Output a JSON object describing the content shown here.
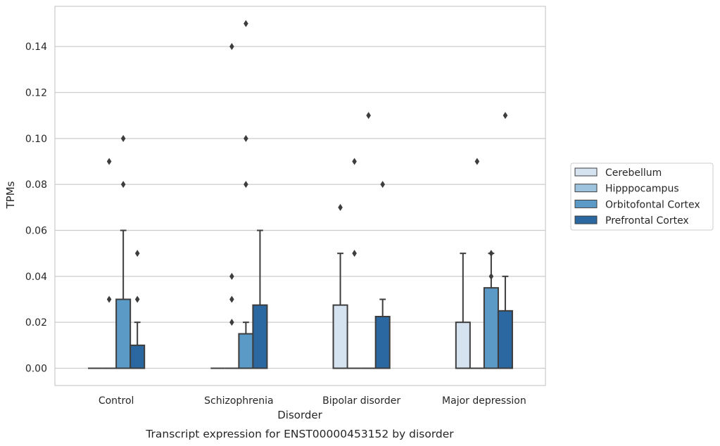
{
  "chart_data": {
    "type": "box",
    "caption": "Transcript expression for ENST00000453152 by disorder",
    "xlabel": "Disorder",
    "ylabel": "TPMs",
    "ylim": [
      -0.0075,
      0.1575
    ],
    "yticks": [
      0.0,
      0.02,
      0.04,
      0.06,
      0.08,
      0.1,
      0.12,
      0.14
    ],
    "ytick_labels": [
      "0.00",
      "0.02",
      "0.04",
      "0.06",
      "0.08",
      "0.10",
      "0.12",
      "0.14"
    ],
    "grid": true,
    "legend_placement": "right",
    "categories": [
      "Control",
      "Schizophrenia",
      "Bipolar disorder",
      "Major depression"
    ],
    "series": [
      {
        "name": "Cerebellum",
        "color": "#d5e3f1",
        "boxes": [
          {
            "q1": 0,
            "median": 0,
            "q3": 0,
            "whisker_low": 0,
            "whisker_high": 0,
            "outliers": []
          },
          {
            "q1": 0,
            "median": 0,
            "q3": 0,
            "whisker_low": 0,
            "whisker_high": 0,
            "outliers": []
          },
          {
            "q1": 0,
            "median": 0,
            "q3": 0.0275,
            "whisker_low": 0,
            "whisker_high": 0.05,
            "outliers": [
              0.07
            ]
          },
          {
            "q1": 0,
            "median": 0,
            "q3": 0.02,
            "whisker_low": 0,
            "whisker_high": 0.05,
            "outliers": []
          }
        ]
      },
      {
        "name": "Hipppocampus",
        "color": "#9dc3de",
        "boxes": [
          {
            "q1": 0,
            "median": 0,
            "q3": 0,
            "whisker_low": 0,
            "whisker_high": 0,
            "outliers": [
              0.03,
              0.09
            ]
          },
          {
            "q1": 0,
            "median": 0,
            "q3": 0,
            "whisker_low": 0,
            "whisker_high": 0,
            "outliers": [
              0.02,
              0.03,
              0.04,
              0.14
            ]
          },
          {
            "q1": 0,
            "median": 0,
            "q3": 0,
            "whisker_low": 0,
            "whisker_high": 0,
            "outliers": [
              0.05,
              0.09
            ]
          },
          {
            "q1": 0,
            "median": 0,
            "q3": 0,
            "whisker_low": 0,
            "whisker_high": 0,
            "outliers": [
              0.09
            ]
          }
        ]
      },
      {
        "name": "Orbitofontal Cortex",
        "color": "#5b9ac7",
        "boxes": [
          {
            "q1": 0,
            "median": 0,
            "q3": 0.03,
            "whisker_low": 0,
            "whisker_high": 0.06,
            "outliers": [
              0.08,
              0.1
            ]
          },
          {
            "q1": 0,
            "median": 0,
            "q3": 0.015,
            "whisker_low": 0,
            "whisker_high": 0.02,
            "outliers": [
              0.08,
              0.1,
              0.15
            ]
          },
          {
            "q1": 0,
            "median": 0,
            "q3": 0,
            "whisker_low": 0,
            "whisker_high": 0,
            "outliers": [
              0.11
            ]
          },
          {
            "q1": 0,
            "median": 0,
            "q3": 0.035,
            "whisker_low": 0,
            "whisker_high": 0.05,
            "outliers": [
              0.04,
              0.05
            ]
          }
        ]
      },
      {
        "name": "Prefrontal Cortex",
        "color": "#2b67a0",
        "boxes": [
          {
            "q1": 0,
            "median": 0,
            "q3": 0.01,
            "whisker_low": 0,
            "whisker_high": 0.02,
            "outliers": [
              0.03,
              0.05
            ]
          },
          {
            "q1": 0,
            "median": 0,
            "q3": 0.0275,
            "whisker_low": 0,
            "whisker_high": 0.06,
            "outliers": []
          },
          {
            "q1": 0,
            "median": 0,
            "q3": 0.0225,
            "whisker_low": 0,
            "whisker_high": 0.03,
            "outliers": [
              0.08
            ]
          },
          {
            "q1": 0,
            "median": 0,
            "q3": 0.025,
            "whisker_low": 0,
            "whisker_high": 0.04,
            "outliers": [
              0.11
            ]
          }
        ]
      }
    ]
  }
}
